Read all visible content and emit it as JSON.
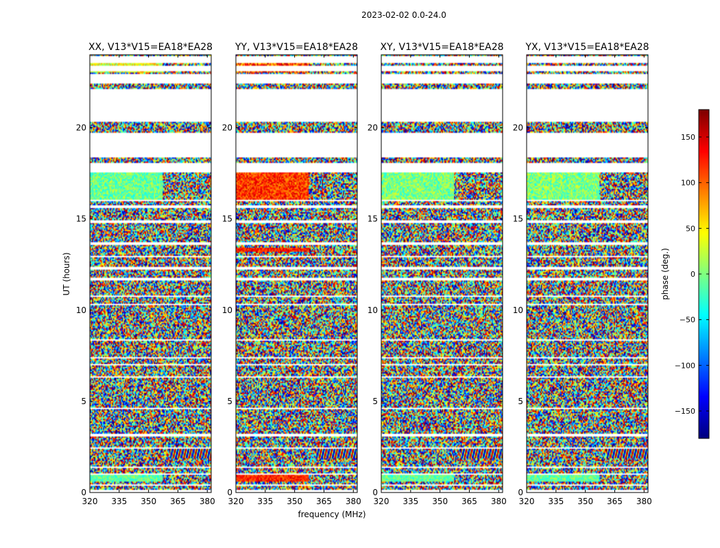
{
  "figure_title": "2023-02-02 0.0-24.0",
  "chart_data": {
    "type": "heatmap",
    "title": "2023-02-02 0.0-24.0",
    "xlabel": "frequency (MHz)",
    "ylabel": "UT (hours)",
    "xlim": [
      320,
      382
    ],
    "ylim": [
      0,
      24
    ],
    "x_ticks": [
      320,
      335,
      350,
      365,
      380
    ],
    "y_ticks": [
      0,
      5,
      10,
      15,
      20
    ],
    "panels": [
      {
        "title": "XX, V13*V15=EA18*EA28",
        "show_ticklabels_y": true
      },
      {
        "title": "YY, V13*V15=EA18*EA28",
        "show_ticklabels_y": true
      },
      {
        "title": "XY, V13*V15=EA18*EA28",
        "show_ticklabels_y": true
      },
      {
        "title": "YX, V13*V15=EA18*EA28",
        "show_ticklabels_y": true
      }
    ],
    "colorbar": {
      "label": "phase (deg.)",
      "range": [
        -180,
        180
      ],
      "ticks": [
        150,
        100,
        50,
        0,
        -50,
        -100,
        -150
      ],
      "colormap": "jet"
    },
    "data_gaps_hours": [
      [
        0.0,
        0.15
      ],
      [
        0.35,
        0.45
      ],
      [
        0.95,
        1.05
      ],
      [
        1.35,
        1.4
      ],
      [
        2.4,
        2.5
      ],
      [
        3.1,
        3.2
      ],
      [
        3.5,
        3.55
      ],
      [
        4.6,
        4.65
      ],
      [
        6.3,
        6.35
      ],
      [
        7.0,
        7.05
      ],
      [
        7.35,
        7.45
      ],
      [
        8.35,
        8.4
      ],
      [
        8.75,
        8.8
      ],
      [
        10.3,
        10.35
      ],
      [
        10.75,
        10.8
      ],
      [
        11.65,
        11.75
      ],
      [
        12.25,
        12.35
      ],
      [
        12.9,
        12.95
      ],
      [
        13.6,
        13.7
      ],
      [
        14.8,
        14.9
      ],
      [
        15.6,
        15.75
      ],
      [
        15.95,
        16.05
      ],
      [
        17.55,
        18.1
      ],
      [
        18.4,
        19.75
      ],
      [
        20.35,
        22.15
      ],
      [
        22.45,
        22.95
      ],
      [
        23.1,
        23.4
      ],
      [
        23.55,
        23.95
      ]
    ]
  },
  "colors": {
    "axes": "#000000",
    "background": "#ffffff"
  }
}
